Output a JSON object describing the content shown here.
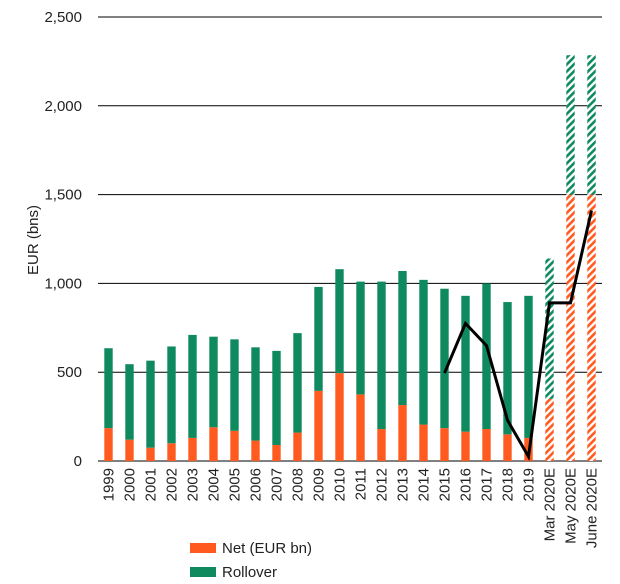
{
  "chart_data": {
    "type": "bar",
    "stacked": true,
    "ylabel": "EUR (bns)",
    "ylim": [
      0,
      2500
    ],
    "yticks": [
      0,
      500,
      1000,
      1500,
      2000,
      2500
    ],
    "ytick_labels": [
      "0",
      "500",
      "1,000",
      "1,500",
      "2,000",
      "2,500"
    ],
    "categories": [
      "1999",
      "2000",
      "2001",
      "2002",
      "2003",
      "2004",
      "2005",
      "2006",
      "2007",
      "2008",
      "2009",
      "2010",
      "2011",
      "2012",
      "2013",
      "2014",
      "2015",
      "2016",
      "2017",
      "2018",
      "2019",
      "Mar 2020E",
      "May 2020E",
      "June 2020E"
    ],
    "estimate_categories": [
      "Mar 2020E",
      "May 2020E",
      "June 2020E"
    ],
    "series": [
      {
        "name": "Net (EUR bn)",
        "color": "#ff5a1f",
        "values": [
          185,
          120,
          75,
          100,
          130,
          190,
          170,
          115,
          90,
          160,
          395,
          495,
          375,
          180,
          315,
          205,
          185,
          165,
          180,
          150,
          130,
          350,
          1500,
          1500
        ]
      },
      {
        "name": "Rollover",
        "color": "#0f8a5f",
        "values": [
          450,
          425,
          490,
          545,
          580,
          510,
          515,
          525,
          530,
          560,
          585,
          585,
          635,
          830,
          755,
          815,
          785,
          765,
          820,
          745,
          800,
          790,
          785,
          785
        ]
      }
    ],
    "line": {
      "color": "#000000",
      "x_start": "2015",
      "values": [
        495,
        775,
        650,
        230,
        25,
        890,
        890,
        1410
      ]
    },
    "grid": true,
    "legend_position": "bottom"
  }
}
